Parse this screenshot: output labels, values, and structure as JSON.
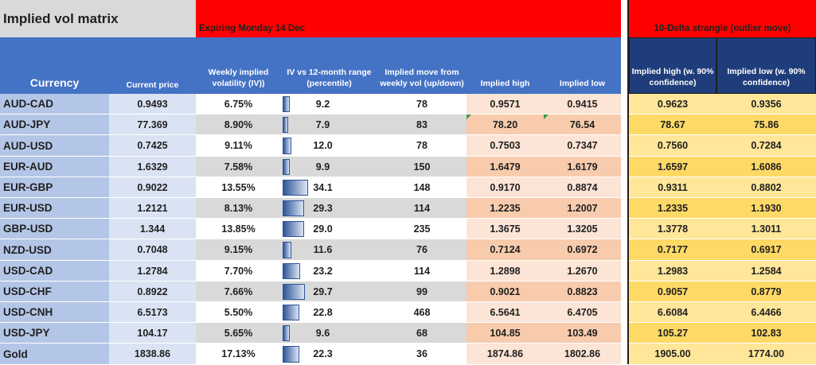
{
  "title": "Implied vol matrix",
  "expiry_banner": "Expiring Monday 14 Dec",
  "strangle_banner": "10-Delta strangle (outlier  move)",
  "headers": {
    "currency": "Currency",
    "current_price": "Current price",
    "weekly_iv": "Weekly implied volatility (IV))",
    "iv_range": "IV vs  12-month range (percentile)",
    "implied_move": "Implied move from weekly vol (up/down)",
    "implied_high": "Implied high",
    "implied_low": "Implied low",
    "strangle_high": "Implied high (w. 90% confidence)",
    "strangle_low": "Implied low (w. 90% confidence)"
  },
  "colors": {
    "header_blue": "#4472c4",
    "banner_red": "#ff0000",
    "currency_col": "#b4c6e7",
    "price_col": "#dae3f3",
    "pink_light": "#fce4d6",
    "pink_dark": "#f8cbad",
    "yellow_light": "#ffe699",
    "yellow_dark": "#ffd966"
  },
  "rows": [
    {
      "currency": "AUD-CAD",
      "price": "0.9493",
      "iv": "6.75%",
      "ivr": "9.2",
      "ivr_pct": 9.2,
      "move": "78",
      "high": "0.9571",
      "low": "0.9415",
      "s_high": "0.9623",
      "s_low": "0.9356"
    },
    {
      "currency": "AUD-JPY",
      "price": "77.369",
      "iv": "8.90%",
      "ivr": "7.9",
      "ivr_pct": 7.9,
      "move": "83",
      "high": "78.20",
      "low": "76.54",
      "s_high": "78.67",
      "s_low": "75.86"
    },
    {
      "currency": "AUD-USD",
      "price": "0.7425",
      "iv": "9.11%",
      "ivr": "12.0",
      "ivr_pct": 12.0,
      "move": "78",
      "high": "0.7503",
      "low": "0.7347",
      "s_high": "0.7560",
      "s_low": "0.7284"
    },
    {
      "currency": "EUR-AUD",
      "price": "1.6329",
      "iv": "7.58%",
      "ivr": "9.9",
      "ivr_pct": 9.9,
      "move": "150",
      "high": "1.6479",
      "low": "1.6179",
      "s_high": "1.6597",
      "s_low": "1.6086"
    },
    {
      "currency": "EUR-GBP",
      "price": "0.9022",
      "iv": "13.55%",
      "ivr": "34.1",
      "ivr_pct": 34.1,
      "move": "148",
      "high": "0.9170",
      "low": "0.8874",
      "s_high": "0.9311",
      "s_low": "0.8802"
    },
    {
      "currency": "EUR-USD",
      "price": "1.2121",
      "iv": "8.13%",
      "ivr": "29.3",
      "ivr_pct": 29.3,
      "move": "114",
      "high": "1.2235",
      "low": "1.2007",
      "s_high": "1.2335",
      "s_low": "1.1930"
    },
    {
      "currency": "GBP-USD",
      "price": "1.344",
      "iv": "13.85%",
      "ivr": "29.0",
      "ivr_pct": 29.0,
      "move": "235",
      "high": "1.3675",
      "low": "1.3205",
      "s_high": "1.3778",
      "s_low": "1.3011"
    },
    {
      "currency": "NZD-USD",
      "price": "0.7048",
      "iv": "9.15%",
      "ivr": "11.6",
      "ivr_pct": 11.6,
      "move": "76",
      "high": "0.7124",
      "low": "0.6972",
      "s_high": "0.7177",
      "s_low": "0.6917"
    },
    {
      "currency": "USD-CAD",
      "price": "1.2784",
      "iv": "7.70%",
      "ivr": "23.2",
      "ivr_pct": 23.2,
      "move": "114",
      "high": "1.2898",
      "low": "1.2670",
      "s_high": "1.2983",
      "s_low": "1.2584"
    },
    {
      "currency": "USD-CHF",
      "price": "0.8922",
      "iv": "7.66%",
      "ivr": "29.7",
      "ivr_pct": 29.7,
      "move": "99",
      "high": "0.9021",
      "low": "0.8823",
      "s_high": "0.9057",
      "s_low": "0.8779"
    },
    {
      "currency": "USD-CNH",
      "price": "6.5173",
      "iv": "5.50%",
      "ivr": "22.8",
      "ivr_pct": 22.8,
      "move": "468",
      "high": "6.5641",
      "low": "6.4705",
      "s_high": "6.6084",
      "s_low": "6.4466"
    },
    {
      "currency": "USD-JPY",
      "price": "104.17",
      "iv": "5.65%",
      "ivr": "9.6",
      "ivr_pct": 9.6,
      "move": "68",
      "high": "104.85",
      "low": "103.49",
      "s_high": "105.27",
      "s_low": "102.83"
    },
    {
      "currency": "Gold",
      "price": "1838.86",
      "iv": "17.13%",
      "ivr": "22.3",
      "ivr_pct": 22.3,
      "move": "36",
      "high": "1874.86",
      "low": "1802.86",
      "s_high": "1905.00",
      "s_low": "1774.00"
    }
  ]
}
